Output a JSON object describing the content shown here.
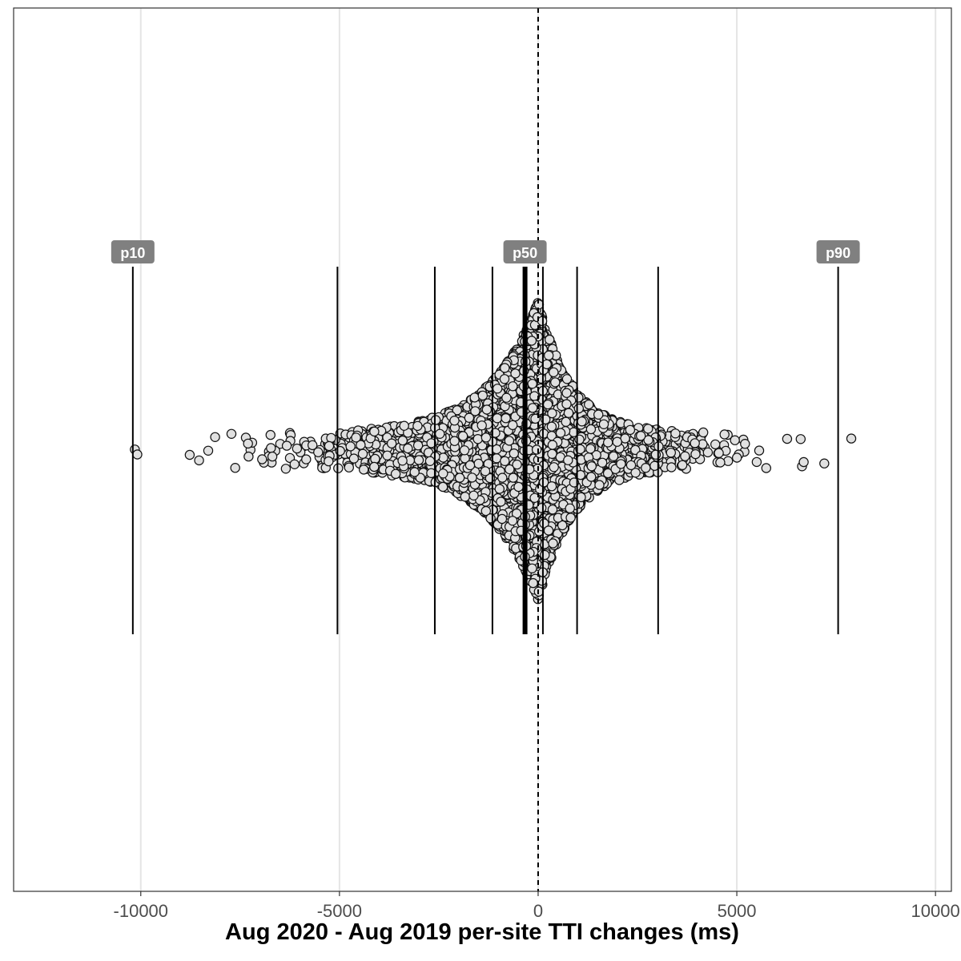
{
  "chart_data": {
    "type": "scatter",
    "subtype": "beeswarm",
    "title": "",
    "xlabel": "Aug 2020 - Aug 2019 per-site TTI changes (ms)",
    "ylabel": "",
    "xlim": [
      -13200,
      10400
    ],
    "x_ticks": [
      -10000,
      -5000,
      0,
      5000,
      10000
    ],
    "x_tick_labels": [
      "-10000",
      "-5000",
      "0",
      "5000",
      "10000"
    ],
    "grid": "vertical-major",
    "reference_line": {
      "x": 0,
      "style": "dashed"
    },
    "percentile_lines": [
      {
        "x": -10200,
        "label": "p10"
      },
      {
        "x": -5050,
        "label": ""
      },
      {
        "x": -2600,
        "label": ""
      },
      {
        "x": -1150,
        "label": ""
      },
      {
        "x": -330,
        "label": "p50"
      },
      {
        "x": 120,
        "label": ""
      },
      {
        "x": 980,
        "label": ""
      },
      {
        "x": 3020,
        "label": ""
      },
      {
        "x": 7550,
        "label": "p90"
      }
    ],
    "distribution": {
      "median": -330,
      "left_scale": 1250,
      "right_scale": 850,
      "peak_x": 0
    },
    "colors": {
      "point_fill": "#e0e0e0",
      "point_stroke": "#111111",
      "grid": "#e5e5e5",
      "badge": "#808080",
      "line": "#000000"
    }
  }
}
